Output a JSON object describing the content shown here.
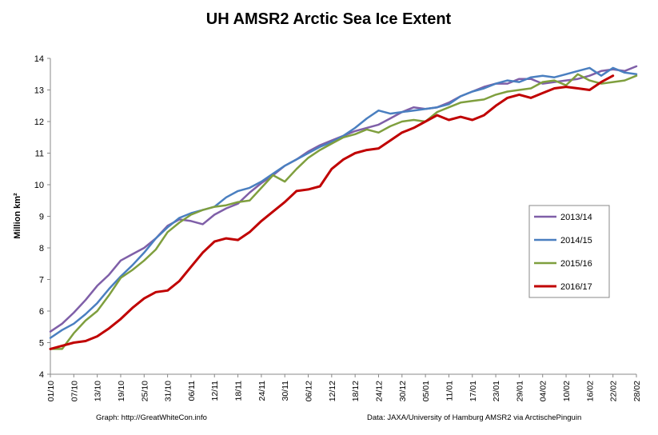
{
  "chart_data": {
    "type": "line",
    "title": "UH AMSR2 Arctic Sea Ice Extent",
    "ylabel": "Million km²",
    "xlabel": "",
    "ylim": [
      4,
      14
    ],
    "yticks": [
      "4",
      "5",
      "6",
      "7",
      "8",
      "9",
      "10",
      "11",
      "12",
      "13",
      "14"
    ],
    "xtick_labels": [
      "01/10",
      "07/10",
      "13/10",
      "19/10",
      "25/10",
      "31/10",
      "06/11",
      "12/11",
      "18/11",
      "24/11",
      "30/11",
      "06/12",
      "12/12",
      "18/12",
      "24/12",
      "30/12",
      "05/01",
      "11/01",
      "17/01",
      "23/01",
      "29/01",
      "04/02",
      "10/02",
      "16/02",
      "22/02",
      "28/02"
    ],
    "x_unit": "day of season (day 0 = 01/10)",
    "grid": false,
    "legend_position": "right",
    "footer_left": "Graph: http://GreatWhiteCon.info",
    "footer_right": "Data: JAXA/University of Hamburg AMSR2 via ArctischePinguin",
    "series": [
      {
        "name": "2013/14",
        "color": "#7f5fa8",
        "x": [
          0,
          3,
          6,
          9,
          12,
          15,
          18,
          21,
          24,
          27,
          30,
          33,
          36,
          39,
          42,
          45,
          48,
          51,
          54,
          57,
          60,
          63,
          66,
          69,
          72,
          75,
          78,
          81,
          84,
          87,
          90,
          93,
          96,
          99,
          102,
          105,
          108,
          111,
          114,
          117,
          120,
          123,
          126,
          129,
          132,
          135,
          138,
          141,
          144,
          147,
          150
        ],
        "y": [
          5.35,
          5.6,
          5.95,
          6.35,
          6.8,
          7.15,
          7.6,
          7.8,
          8.0,
          8.3,
          8.7,
          8.9,
          8.85,
          8.75,
          9.05,
          9.25,
          9.4,
          9.75,
          10.05,
          10.3,
          10.6,
          10.8,
          11.05,
          11.25,
          11.4,
          11.55,
          11.7,
          11.8,
          11.9,
          12.1,
          12.3,
          12.45,
          12.4,
          12.45,
          12.6,
          12.8,
          12.95,
          13.1,
          13.2,
          13.2,
          13.35,
          13.35,
          13.2,
          13.25,
          13.3,
          13.35,
          13.45,
          13.6,
          13.65,
          13.6,
          13.75
        ]
      },
      {
        "name": "2014/15",
        "color": "#4a7fc0",
        "x": [
          0,
          3,
          6,
          9,
          12,
          15,
          18,
          21,
          24,
          27,
          30,
          33,
          36,
          39,
          42,
          45,
          48,
          51,
          54,
          57,
          60,
          63,
          66,
          69,
          72,
          75,
          78,
          81,
          84,
          87,
          90,
          93,
          96,
          99,
          102,
          105,
          108,
          111,
          114,
          117,
          120,
          123,
          126,
          129,
          132,
          135,
          138,
          141,
          144,
          147,
          150
        ],
        "y": [
          5.15,
          5.4,
          5.6,
          5.9,
          6.25,
          6.7,
          7.1,
          7.45,
          7.85,
          8.3,
          8.65,
          8.95,
          9.1,
          9.2,
          9.3,
          9.6,
          9.8,
          9.9,
          10.1,
          10.35,
          10.6,
          10.8,
          11.0,
          11.2,
          11.35,
          11.55,
          11.8,
          12.1,
          12.35,
          12.25,
          12.3,
          12.35,
          12.4,
          12.45,
          12.55,
          12.8,
          12.95,
          13.05,
          13.2,
          13.3,
          13.25,
          13.4,
          13.45,
          13.4,
          13.5,
          13.6,
          13.7,
          13.45,
          13.7,
          13.55,
          13.5
        ]
      },
      {
        "name": "2015/16",
        "color": "#7f9f3e",
        "x": [
          0,
          3,
          6,
          9,
          12,
          15,
          18,
          21,
          24,
          27,
          30,
          33,
          36,
          39,
          42,
          45,
          48,
          51,
          54,
          57,
          60,
          63,
          66,
          69,
          72,
          75,
          78,
          81,
          84,
          87,
          90,
          93,
          96,
          99,
          102,
          105,
          108,
          111,
          114,
          117,
          120,
          123,
          126,
          129,
          132,
          135,
          138,
          141,
          144,
          147,
          150
        ],
        "y": [
          4.8,
          4.8,
          5.3,
          5.7,
          6.0,
          6.5,
          7.05,
          7.3,
          7.6,
          7.95,
          8.5,
          8.8,
          9.05,
          9.2,
          9.3,
          9.35,
          9.45,
          9.5,
          9.9,
          10.3,
          10.1,
          10.5,
          10.85,
          11.1,
          11.3,
          11.5,
          11.6,
          11.75,
          11.65,
          11.85,
          12.0,
          12.05,
          12.0,
          12.3,
          12.45,
          12.6,
          12.65,
          12.7,
          12.85,
          12.95,
          13.0,
          13.05,
          13.25,
          13.3,
          13.15,
          13.5,
          13.3,
          13.2,
          13.25,
          13.3,
          13.45
        ]
      },
      {
        "name": "2016/17",
        "color": "#c00000",
        "x": [
          0,
          3,
          6,
          9,
          12,
          15,
          18,
          21,
          24,
          27,
          30,
          33,
          36,
          39,
          42,
          45,
          48,
          51,
          54,
          57,
          60,
          63,
          66,
          69,
          72,
          75,
          78,
          81,
          84,
          87,
          90,
          93,
          96,
          99,
          102,
          105,
          108,
          111,
          114,
          117,
          120,
          123,
          126,
          129,
          132,
          135,
          138,
          141,
          144
        ],
        "y": [
          4.8,
          4.9,
          5.0,
          5.05,
          5.2,
          5.45,
          5.75,
          6.1,
          6.4,
          6.6,
          6.65,
          6.95,
          7.4,
          7.85,
          8.2,
          8.3,
          8.25,
          8.5,
          8.85,
          9.15,
          9.45,
          9.8,
          9.85,
          9.95,
          10.5,
          10.8,
          11.0,
          11.1,
          11.15,
          11.4,
          11.65,
          11.8,
          12.0,
          12.2,
          12.05,
          12.15,
          12.05,
          12.2,
          12.5,
          12.75,
          12.85,
          12.75,
          12.9,
          13.05,
          13.1,
          13.05,
          13.0,
          13.25,
          13.45
        ]
      }
    ]
  }
}
